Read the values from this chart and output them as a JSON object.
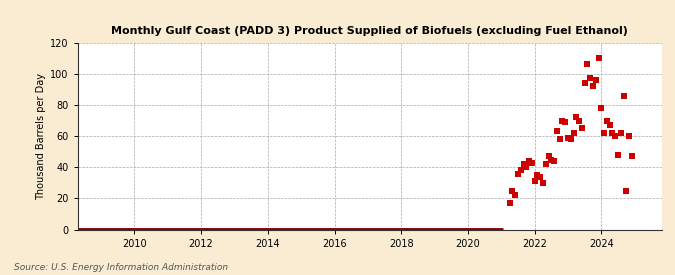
{
  "title": "Monthly Gulf Coast (PADD 3) Product Supplied of Biofuels (excluding Fuel Ethanol)",
  "ylabel": "Thousand Barrels per Day",
  "source": "Source: U.S. Energy Information Administration",
  "background_color": "#faecd2",
  "plot_background": "#ffffff",
  "dot_color": "#cc0000",
  "line_color": "#8b0000",
  "ylim": [
    0,
    120
  ],
  "yticks": [
    0,
    20,
    40,
    60,
    80,
    100,
    120
  ],
  "xlim_start": 2008.3,
  "xlim_end": 2025.8,
  "xticks": [
    2010,
    2012,
    2014,
    2016,
    2018,
    2020,
    2022,
    2024
  ],
  "zero_line_x_start": 2008.3,
  "zero_line_x_end": 2021.05,
  "scatter_data": [
    [
      2021.25,
      17
    ],
    [
      2021.33,
      25
    ],
    [
      2021.42,
      22
    ],
    [
      2021.5,
      36
    ],
    [
      2021.58,
      38
    ],
    [
      2021.67,
      42
    ],
    [
      2021.75,
      40
    ],
    [
      2021.83,
      44
    ],
    [
      2021.92,
      43
    ],
    [
      2022.0,
      31
    ],
    [
      2022.08,
      35
    ],
    [
      2022.17,
      34
    ],
    [
      2022.25,
      30
    ],
    [
      2022.33,
      42
    ],
    [
      2022.42,
      47
    ],
    [
      2022.5,
      45
    ],
    [
      2022.58,
      44
    ],
    [
      2022.67,
      63
    ],
    [
      2022.75,
      58
    ],
    [
      2022.83,
      70
    ],
    [
      2022.92,
      69
    ],
    [
      2023.0,
      59
    ],
    [
      2023.08,
      58
    ],
    [
      2023.17,
      62
    ],
    [
      2023.25,
      72
    ],
    [
      2023.33,
      70
    ],
    [
      2023.42,
      65
    ],
    [
      2023.5,
      94
    ],
    [
      2023.58,
      106
    ],
    [
      2023.67,
      97
    ],
    [
      2023.75,
      92
    ],
    [
      2023.83,
      96
    ],
    [
      2023.92,
      110
    ],
    [
      2024.0,
      78
    ],
    [
      2024.08,
      62
    ],
    [
      2024.17,
      70
    ],
    [
      2024.25,
      67
    ],
    [
      2024.33,
      62
    ],
    [
      2024.42,
      60
    ],
    [
      2024.5,
      48
    ],
    [
      2024.58,
      62
    ],
    [
      2024.67,
      86
    ],
    [
      2024.75,
      25
    ],
    [
      2024.83,
      60
    ],
    [
      2024.92,
      47
    ]
  ]
}
